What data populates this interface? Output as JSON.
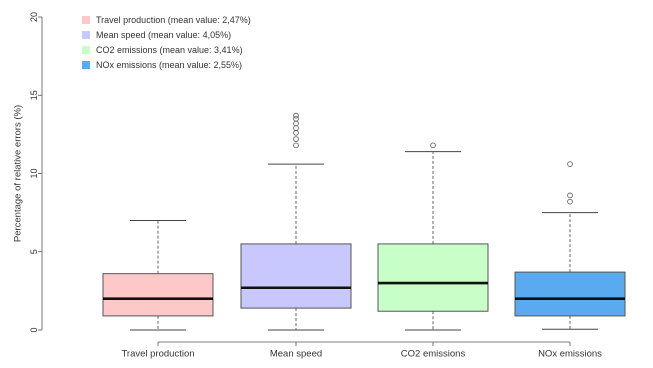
{
  "chart_data": {
    "type": "boxplot",
    "title": "",
    "xlabel": "",
    "ylabel": "Percentage of relative errors (%)",
    "ylim": [
      0,
      20
    ],
    "yticks": [
      0,
      5,
      10,
      15,
      20
    ],
    "grid": false,
    "legend_position": "top-left",
    "categories": [
      "Travel production",
      "Mean speed",
      "CO2 emissions",
      "NOx emissions"
    ],
    "series": [
      {
        "name": "Travel production (mean value: 2,47%)",
        "color": "#ffc8c8",
        "whisker_low": 0.0,
        "q1": 0.9,
        "median": 2.0,
        "q3": 3.6,
        "whisker_high": 7.0,
        "outliers": []
      },
      {
        "name": "Mean speed (mean value: 4,05%)",
        "color": "#c8c8ff",
        "whisker_low": 0.0,
        "q1": 1.4,
        "median": 2.7,
        "q3": 5.5,
        "whisker_high": 10.6,
        "outliers": [
          11.8,
          12.2,
          12.6,
          12.9,
          13.2,
          13.5,
          13.7
        ]
      },
      {
        "name": "CO2 emissions (mean value: 3,41%)",
        "color": "#c8ffc8",
        "whisker_low": 0.0,
        "q1": 1.2,
        "median": 3.0,
        "q3": 5.5,
        "whisker_high": 11.4,
        "outliers": [
          11.8
        ]
      },
      {
        "name": "NOx emissions (mean value: 2,55%)",
        "color": "#5aaaf0",
        "whisker_low": 0.05,
        "q1": 0.9,
        "median": 2.0,
        "q3": 3.7,
        "whisker_high": 7.5,
        "outliers": [
          8.2,
          8.6,
          10.6
        ]
      }
    ]
  }
}
